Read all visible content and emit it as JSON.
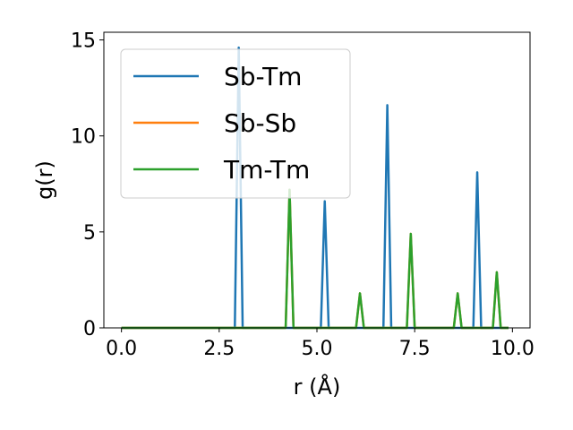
{
  "chart_data": {
    "type": "line",
    "title": "",
    "xlabel": "r (Å)",
    "ylabel": "g(r)",
    "xlim": [
      -0.45,
      10.45
    ],
    "ylim": [
      0,
      15.4
    ],
    "xticks": [
      0.0,
      2.5,
      5.0,
      7.5,
      10.0
    ],
    "xtick_labels": [
      "0.0",
      "2.5",
      "5.0",
      "7.5",
      "10.0"
    ],
    "yticks": [
      0,
      5,
      10,
      15
    ],
    "ytick_labels": [
      "0",
      "5",
      "10",
      "15"
    ],
    "grid": false,
    "legend_position": "top-left",
    "series": [
      {
        "name": "Sb-Tm",
        "color": "#1f77b4",
        "x": [
          0.0,
          2.9,
          3.0,
          3.1,
          5.1,
          5.2,
          5.3,
          6.7,
          6.8,
          6.9,
          9.0,
          9.1,
          9.2,
          9.9
        ],
        "y": [
          0,
          0,
          14.6,
          0,
          0,
          6.6,
          0,
          0,
          11.6,
          0,
          0,
          8.1,
          0,
          0
        ]
      },
      {
        "name": "Sb-Sb",
        "color": "#ff7f0e",
        "x": [
          0.0,
          4.2,
          4.3,
          4.4,
          6.0,
          6.1,
          6.2,
          7.3,
          7.4,
          7.5,
          8.5,
          8.6,
          8.7,
          9.5,
          9.6,
          9.7,
          9.9
        ],
        "y": [
          0,
          0,
          7.2,
          0,
          0,
          1.8,
          0,
          0,
          4.9,
          0,
          0,
          1.8,
          0,
          0,
          2.9,
          0,
          0
        ]
      },
      {
        "name": "Tm-Tm",
        "color": "#2ca02c",
        "x": [
          0.0,
          4.2,
          4.3,
          4.4,
          6.0,
          6.1,
          6.2,
          7.3,
          7.4,
          7.5,
          8.5,
          8.6,
          8.7,
          9.5,
          9.6,
          9.7,
          9.9
        ],
        "y": [
          0,
          0,
          7.2,
          0,
          0,
          1.8,
          0,
          0,
          4.9,
          0,
          0,
          1.8,
          0,
          0,
          2.9,
          0,
          0
        ]
      }
    ]
  }
}
